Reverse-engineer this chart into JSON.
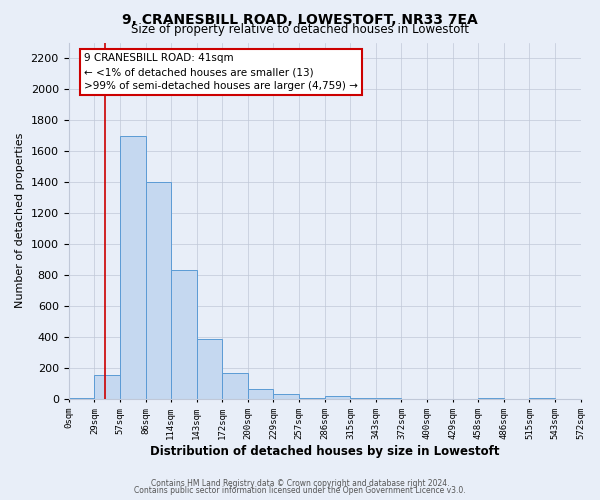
{
  "title": "9, CRANESBILL ROAD, LOWESTOFT, NR33 7EA",
  "subtitle": "Size of property relative to detached houses in Lowestoft",
  "xlabel": "Distribution of detached houses by size in Lowestoft",
  "ylabel": "Number of detached properties",
  "bin_edges": [
    0,
    29,
    57,
    86,
    114,
    143,
    172,
    200,
    229,
    257,
    286,
    315,
    343,
    372,
    400,
    429,
    458,
    486,
    515,
    543,
    572
  ],
  "bin_labels": [
    "0sqm",
    "29sqm",
    "57sqm",
    "86sqm",
    "114sqm",
    "143sqm",
    "172sqm",
    "200sqm",
    "229sqm",
    "257sqm",
    "286sqm",
    "315sqm",
    "343sqm",
    "372sqm",
    "400sqm",
    "429sqm",
    "458sqm",
    "486sqm",
    "515sqm",
    "543sqm",
    "572sqm"
  ],
  "bar_heights": [
    10,
    155,
    1700,
    1400,
    830,
    390,
    165,
    65,
    30,
    5,
    20,
    5,
    5,
    0,
    0,
    0,
    5,
    0,
    5,
    0
  ],
  "bar_color": "#c5d8f0",
  "bar_edge_color": "#5b9bd5",
  "property_line_x": 41,
  "property_line_color": "#cc0000",
  "annotation_title": "9 CRANESBILL ROAD: 41sqm",
  "annotation_line1": "← <1% of detached houses are smaller (13)",
  "annotation_line2": ">99% of semi-detached houses are larger (4,759) →",
  "ylim": [
    0,
    2300
  ],
  "yticks": [
    0,
    200,
    400,
    600,
    800,
    1000,
    1200,
    1400,
    1600,
    1800,
    2000,
    2200
  ],
  "footer1": "Contains HM Land Registry data © Crown copyright and database right 2024.",
  "footer2": "Contains public sector information licensed under the Open Government Licence v3.0.",
  "bg_color": "#e8eef8",
  "plot_bg_color": "#e8eef8",
  "grid_color": "#c0c8d8"
}
